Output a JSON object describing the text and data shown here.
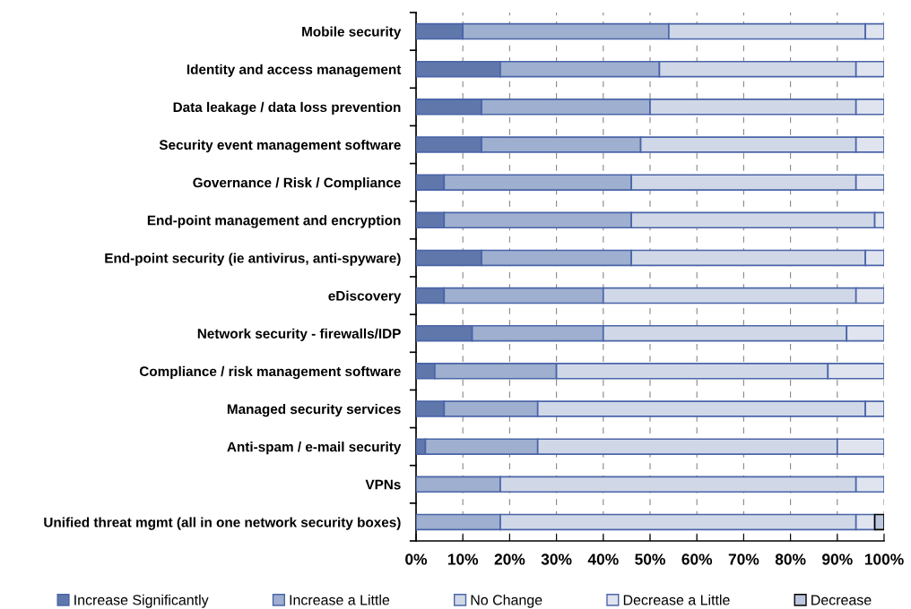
{
  "chart_data": {
    "type": "bar",
    "orientation": "horizontal",
    "stacked": true,
    "categories": [
      "Mobile security",
      "Identity and access management",
      "Data leakage / data loss prevention",
      "Security event management software",
      "Governance / Risk / Compliance",
      "End-point management and encryption",
      "End-point security (ie antivirus, anti-spyware)",
      "eDiscovery",
      "Network security - firewalls/IDP",
      "Compliance / risk management software",
      "Managed security services",
      "Anti-spam / e-mail security",
      "VPNs",
      "Unified threat mgmt (all in one network security boxes)"
    ],
    "series": [
      {
        "name": "Increase Significantly",
        "color": "#5f77ab",
        "values": [
          10,
          18,
          14,
          14,
          6,
          6,
          14,
          6,
          12,
          4,
          6,
          2,
          0,
          0
        ]
      },
      {
        "name": "Increase a Little",
        "color": "#9eafcf",
        "values": [
          44,
          34,
          36,
          34,
          40,
          40,
          32,
          34,
          28,
          26,
          20,
          24,
          18,
          18
        ]
      },
      {
        "name": "No Change",
        "color": "#d0d8e8",
        "values": [
          42,
          42,
          44,
          46,
          48,
          52,
          50,
          54,
          52,
          58,
          70,
          64,
          76,
          76
        ]
      },
      {
        "name": "Decrease a Little",
        "color": "#dfe4ef",
        "values": [
          4,
          6,
          6,
          6,
          6,
          2,
          4,
          6,
          8,
          12,
          4,
          10,
          6,
          4
        ]
      },
      {
        "name": "Decrease",
        "color": "#bcc6dd",
        "values": [
          0,
          0,
          0,
          0,
          0,
          0,
          0,
          0,
          0,
          0,
          0,
          0,
          0,
          2
        ]
      }
    ],
    "xlim": [
      0,
      100
    ],
    "xticks": [
      {
        "value": 0,
        "label": "0%"
      },
      {
        "value": 10,
        "label": "10%"
      },
      {
        "value": 20,
        "label": "20%"
      },
      {
        "value": 30,
        "label": "30%"
      },
      {
        "value": 40,
        "label": "40%"
      },
      {
        "value": 50,
        "label": "50%"
      },
      {
        "value": 60,
        "label": "60%"
      },
      {
        "value": 70,
        "label": "70%"
      },
      {
        "value": 80,
        "label": "80%"
      },
      {
        "value": 90,
        "label": "90%"
      },
      {
        "value": 100,
        "label": "100%"
      }
    ],
    "grid": "x",
    "legend": "bottom"
  }
}
